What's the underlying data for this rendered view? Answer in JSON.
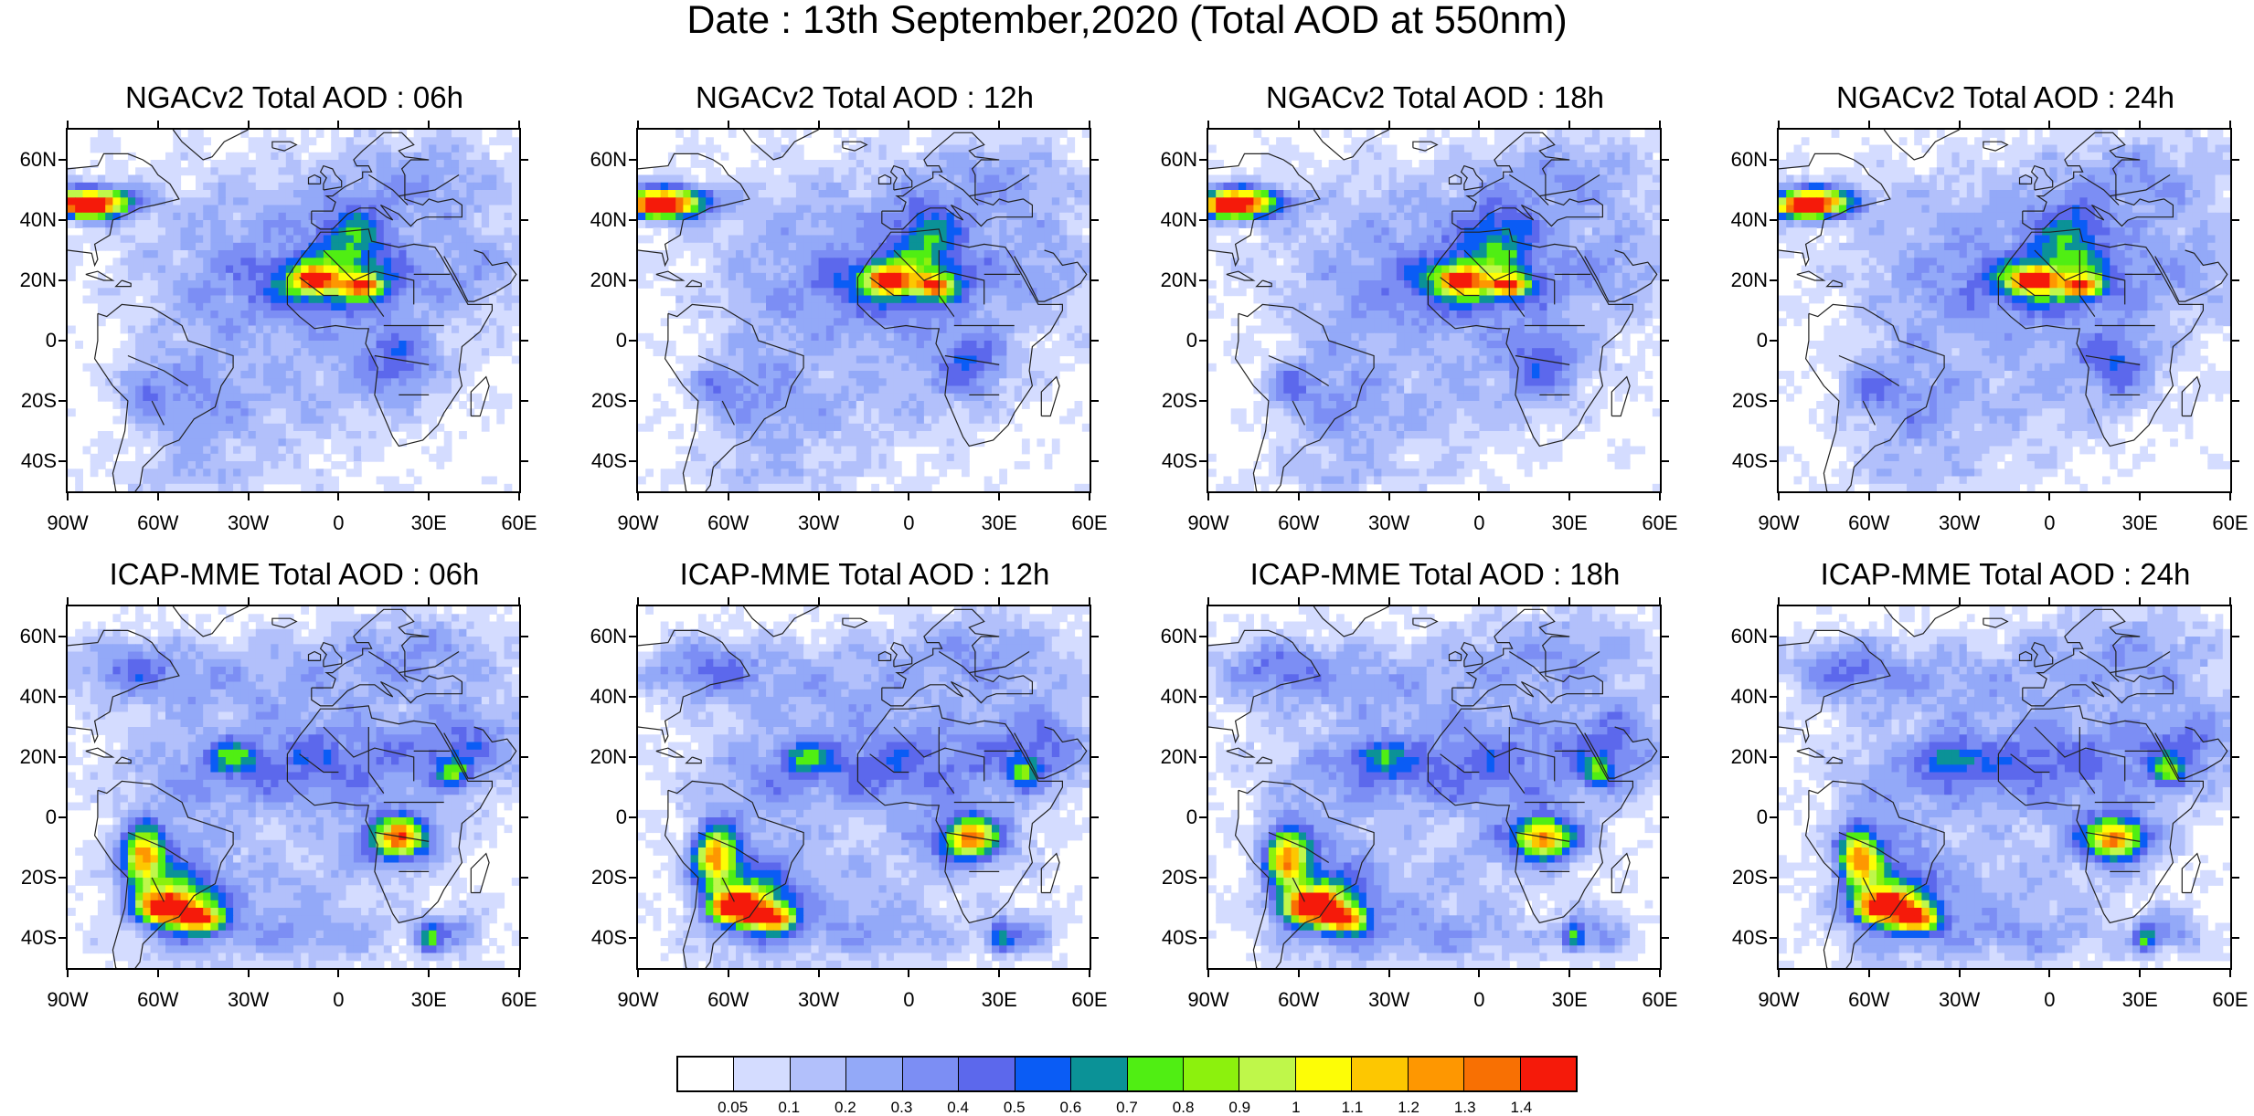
{
  "title": "Date : 13th September,2020 (Total AOD at 550nm)",
  "panels": [
    {
      "title": "NGACv2 Total AOD : 06h",
      "model": "NGACv2",
      "hour": 6
    },
    {
      "title": "NGACv2 Total AOD : 12h",
      "model": "NGACv2",
      "hour": 12
    },
    {
      "title": "NGACv2 Total AOD : 18h",
      "model": "NGACv2",
      "hour": 18
    },
    {
      "title": "NGACv2 Total AOD : 24h",
      "model": "NGACv2",
      "hour": 24
    },
    {
      "title": "ICAP-MME Total AOD : 06h",
      "model": "ICAP-MME",
      "hour": 6
    },
    {
      "title": "ICAP-MME Total AOD : 12h",
      "model": "ICAP-MME",
      "hour": 12
    },
    {
      "title": "ICAP-MME Total AOD : 18h",
      "model": "ICAP-MME",
      "hour": 18
    },
    {
      "title": "ICAP-MME Total AOD : 24h",
      "model": "ICAP-MME",
      "hour": 24
    }
  ],
  "lat_ticks": [
    "60N",
    "40N",
    "20N",
    "0",
    "20S",
    "40S"
  ],
  "lat_values": [
    60,
    40,
    20,
    0,
    -20,
    -40
  ],
  "lon_ticks": [
    "90W",
    "60W",
    "30W",
    "0",
    "30E",
    "60E"
  ],
  "lon_values": [
    -90,
    -60,
    -30,
    0,
    30,
    60
  ],
  "map_extent": {
    "lon_min": -90,
    "lon_max": 60,
    "lat_min": -50,
    "lat_max": 70
  },
  "colorbar": {
    "labels": [
      "0.05",
      "0.1",
      "0.2",
      "0.3",
      "0.4",
      "0.5",
      "0.6",
      "0.7",
      "0.8",
      "0.9",
      "1",
      "1.1",
      "1.2",
      "1.3",
      "1.4"
    ],
    "colors": [
      "#ffffff",
      "#d4dcff",
      "#b2c0fb",
      "#93a9f8",
      "#7c8ef4",
      "#5c68ec",
      "#0a5cf5",
      "#0b9297",
      "#50ee13",
      "#8cf10d",
      "#bff74a",
      "#fdfd06",
      "#fdc701",
      "#fe9701",
      "#f87003",
      "#f51a0a"
    ]
  }
}
